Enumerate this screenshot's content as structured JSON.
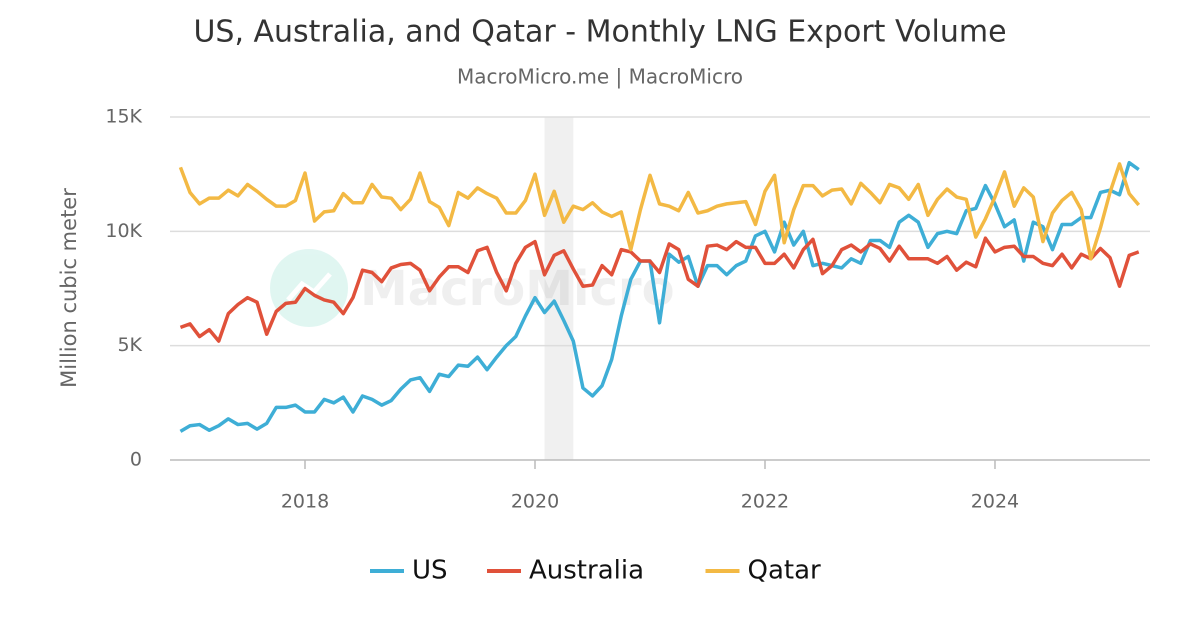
{
  "chart_data": {
    "type": "line",
    "title": "US, Australia, and Qatar - Monthly LNG Export Volume",
    "subtitle": "MacroMicro.me | MacroMicro",
    "y_label": "Million cubic meter",
    "watermark": "MacroMicro",
    "x": [
      2016.917,
      2017,
      2017.083,
      2017.167,
      2017.25,
      2017.333,
      2017.417,
      2017.5,
      2017.583,
      2017.667,
      2017.75,
      2017.833,
      2017.917,
      2018,
      2018.083,
      2018.167,
      2018.25,
      2018.333,
      2018.417,
      2018.5,
      2018.583,
      2018.667,
      2018.75,
      2018.833,
      2018.917,
      2019,
      2019.083,
      2019.167,
      2019.25,
      2019.333,
      2019.417,
      2019.5,
      2019.583,
      2019.667,
      2019.75,
      2019.833,
      2019.917,
      2020,
      2020.083,
      2020.167,
      2020.25,
      2020.333,
      2020.417,
      2020.5,
      2020.583,
      2020.667,
      2020.75,
      2020.833,
      2020.917,
      2021,
      2021.083,
      2021.167,
      2021.25,
      2021.333,
      2021.417,
      2021.5,
      2021.583,
      2021.667,
      2021.75,
      2021.833,
      2021.917,
      2022,
      2022.083,
      2022.167,
      2022.25,
      2022.333,
      2022.417,
      2022.5,
      2022.583,
      2022.667,
      2022.75,
      2022.833,
      2022.917,
      2023,
      2023.083,
      2023.167,
      2023.25,
      2023.333,
      2023.417,
      2023.5,
      2023.583,
      2023.667,
      2023.75,
      2023.833,
      2023.917,
      2024,
      2024.083,
      2024.167,
      2024.25,
      2024.333,
      2024.417,
      2024.5,
      2024.583,
      2024.667,
      2024.75,
      2024.833,
      2024.917,
      2025,
      2025.083,
      2025.167,
      2025.25
    ],
    "series": [
      {
        "name": "US",
        "color": "#3eaed6",
        "values": [
          1250,
          1500,
          1550,
          1300,
          1500,
          1800,
          1550,
          1600,
          1350,
          1600,
          2300,
          2300,
          2400,
          2100,
          2100,
          2650,
          2500,
          2750,
          2100,
          2800,
          2650,
          2400,
          2600,
          3100,
          3500,
          3600,
          3000,
          3750,
          3650,
          4150,
          4100,
          4500,
          3950,
          4500,
          5000,
          5400,
          6300,
          7100,
          6450,
          6950,
          6100,
          5200,
          3150,
          2800,
          3250,
          4400,
          6300,
          7900,
          8700,
          8700,
          6000,
          9000,
          8650,
          8900,
          7600,
          8500,
          8500,
          8100,
          8500,
          8700,
          9800,
          10000,
          9100,
          10400,
          9400,
          10000,
          8500,
          8600,
          8500,
          8400,
          8800,
          8600,
          9600,
          9600,
          9300,
          10400,
          10700,
          10400,
          9300,
          9900,
          10000,
          9900,
          10900,
          11000,
          12000,
          11200,
          10200,
          10500,
          8700,
          10400,
          10200,
          9200,
          10300,
          10300,
          10600,
          10600,
          11700,
          11800,
          11600,
          13000,
          12700
        ]
      },
      {
        "name": "Australia",
        "color": "#e0513a",
        "values": [
          5800,
          5950,
          5400,
          5700,
          5200,
          6400,
          6800,
          7100,
          6900,
          5500,
          6500,
          6850,
          6900,
          7500,
          7200,
          7000,
          6900,
          6400,
          7100,
          8300,
          8200,
          7800,
          8400,
          8550,
          8600,
          8300,
          7400,
          8000,
          8450,
          8450,
          8200,
          9150,
          9300,
          8200,
          7400,
          8600,
          9300,
          9550,
          8100,
          8950,
          9150,
          8350,
          7600,
          7650,
          8500,
          8100,
          9200,
          9100,
          8700,
          8700,
          8200,
          9450,
          9200,
          7900,
          7600,
          9350,
          9400,
          9200,
          9550,
          9300,
          9300,
          8600,
          8600,
          9000,
          8400,
          9200,
          9650,
          8150,
          8500,
          9200,
          9400,
          9100,
          9450,
          9250,
          8700,
          9350,
          8800,
          8800,
          8800,
          8600,
          8900,
          8300,
          8650,
          8450,
          9700,
          9100,
          9300,
          9350,
          8900,
          8900,
          8600,
          8500,
          9000,
          8400,
          9000,
          8800,
          9250,
          8850,
          7600,
          8950,
          9100
        ]
      },
      {
        "name": "Qatar",
        "color": "#f3b944",
        "values": [
          12800,
          11700,
          11200,
          11450,
          11450,
          11800,
          11550,
          12050,
          11750,
          11400,
          11100,
          11100,
          11350,
          12550,
          10450,
          10850,
          10900,
          11650,
          11250,
          11250,
          12050,
          11500,
          11450,
          10950,
          11400,
          12550,
          11300,
          11050,
          10250,
          11700,
          11450,
          11900,
          11650,
          11450,
          10800,
          10800,
          11350,
          12500,
          10700,
          11750,
          10400,
          11100,
          10950,
          11250,
          10850,
          10650,
          10850,
          9200,
          10950,
          12450,
          11200,
          11100,
          10900,
          11700,
          10800,
          10900,
          11100,
          11200,
          11250,
          11300,
          10300,
          11750,
          12450,
          9500,
          10950,
          12000,
          12000,
          11550,
          11800,
          11850,
          11200,
          12100,
          11700,
          11250,
          12050,
          11900,
          11400,
          12050,
          10700,
          11400,
          11850,
          11500,
          11400,
          9750,
          10550,
          11500,
          12600,
          11100,
          11900,
          11500,
          9550,
          10800,
          11350,
          11700,
          10950,
          8800,
          10150,
          11700,
          12950,
          11650,
          11150
        ]
      }
    ],
    "xlim": [
      2016.826,
      2025.348
    ],
    "xticks": [
      2018,
      2020,
      2022,
      2024
    ],
    "ylim": [
      0,
      15000
    ],
    "yticks": [
      0,
      {
        "value": 5000,
        "label": "5K"
      },
      {
        "value": 10000,
        "label": "10K"
      },
      {
        "value": 15000,
        "label": "15K"
      }
    ],
    "grid": true,
    "shade": {
      "from": 2020.083,
      "to": 2020.333
    },
    "legend": "bottom"
  }
}
